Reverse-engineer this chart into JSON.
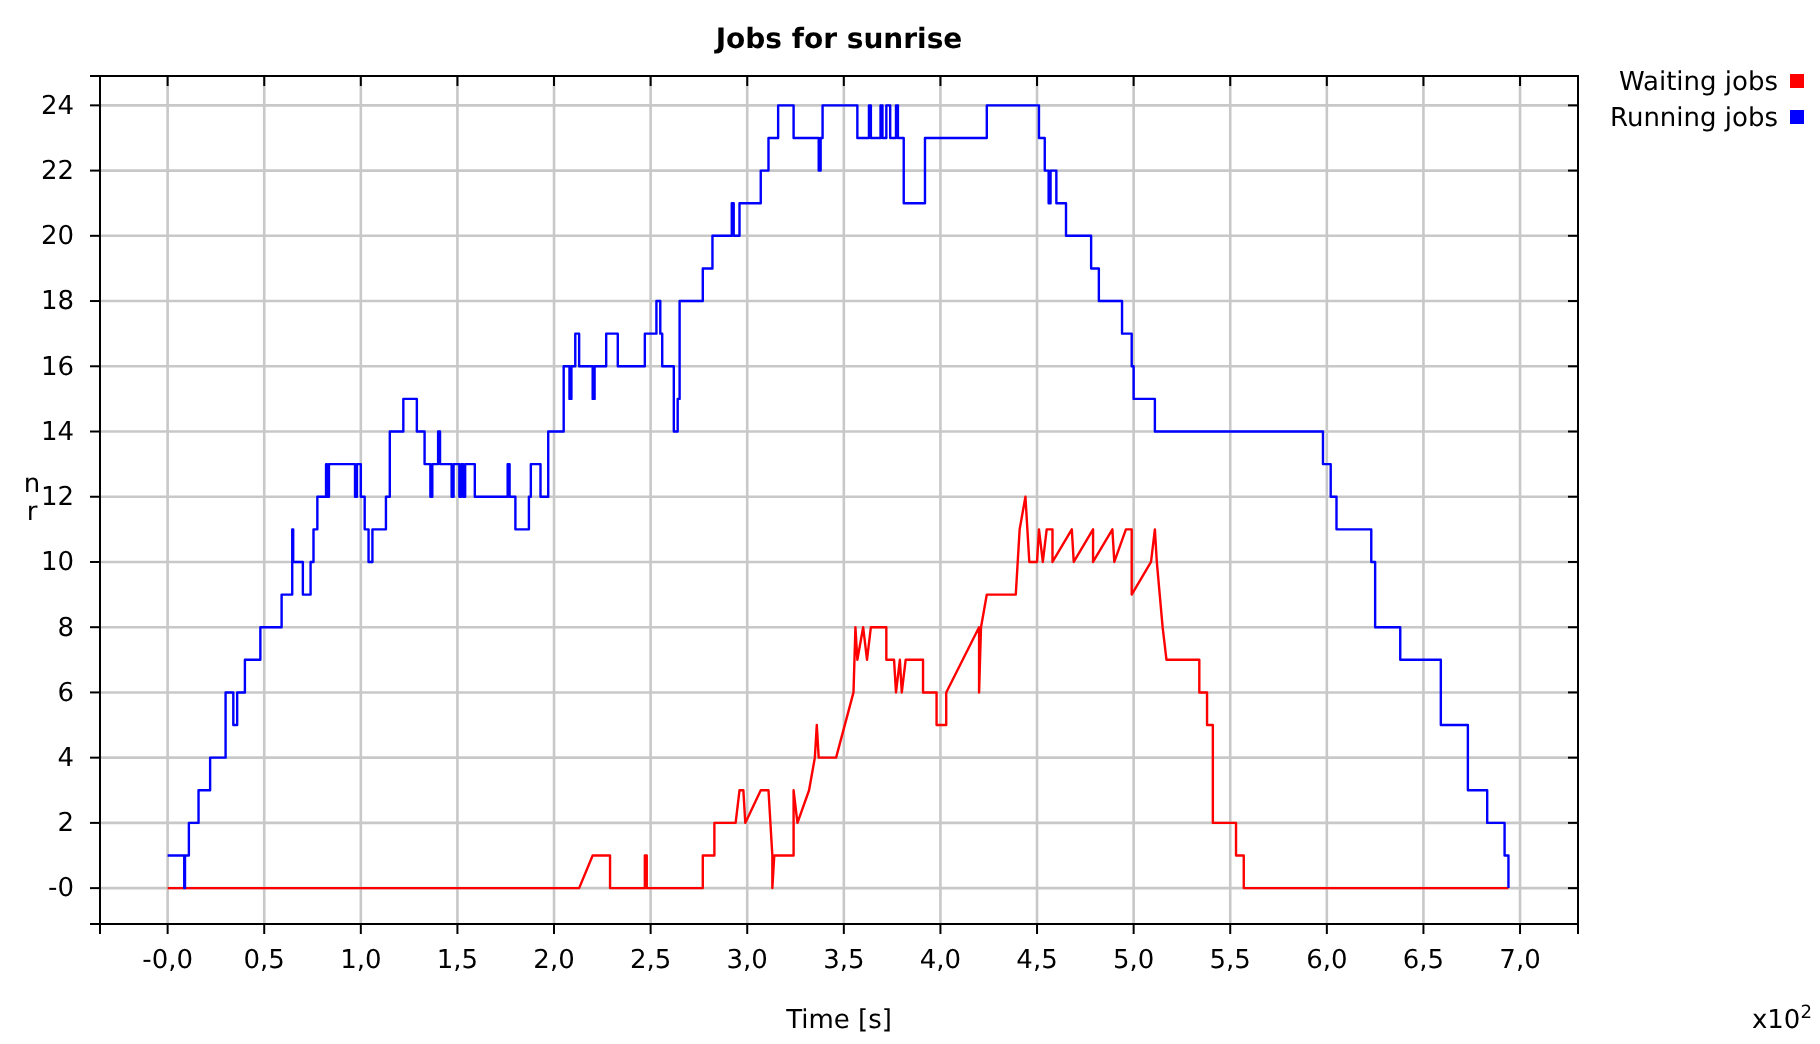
{
  "chart_data": {
    "type": "line",
    "title": "Jobs for sunrise",
    "xlabel": "Time [s]",
    "ylabel": "nr",
    "annotations": [
      "x10$^{2}$"
    ],
    "xlim": [
      -0.35,
      7.3
    ],
    "ylim": [
      -1.1,
      24.9
    ],
    "xticks": [
      {
        "value": 0,
        "label": "-0,0"
      },
      {
        "value": 0.5,
        "label": "0,5"
      },
      {
        "value": 1,
        "label": "1,0"
      },
      {
        "value": 1.5,
        "label": "1,5"
      },
      {
        "value": 2,
        "label": "2,0"
      },
      {
        "value": 2.5,
        "label": "2,5"
      },
      {
        "value": 3,
        "label": "3,0"
      },
      {
        "value": 3.5,
        "label": "3,5"
      },
      {
        "value": 4,
        "label": "4,0"
      },
      {
        "value": 4.5,
        "label": "4,5"
      },
      {
        "value": 5,
        "label": "5,0"
      },
      {
        "value": 5.5,
        "label": "5,5"
      },
      {
        "value": 6,
        "label": "6,0"
      },
      {
        "value": 6.5,
        "label": "6,5"
      },
      {
        "value": 7,
        "label": "7,0"
      }
    ],
    "yticks": [
      {
        "value": 0,
        "label": "-0"
      },
      2,
      4,
      6,
      8,
      10,
      12,
      14,
      16,
      18,
      20,
      22,
      24
    ],
    "grid": true,
    "legend": "top right",
    "marker": "none",
    "line_style": "solid",
    "series": [
      {
        "name": "Waiting jobs",
        "color": "#ff0000",
        "x": [
          0,
          2.13,
          2.2,
          2.29,
          2.29,
          2.47,
          2.47,
          2.48,
          2.48,
          2.77,
          2.77,
          2.83,
          2.83,
          2.94,
          2.96,
          2.98,
          2.99,
          3.07,
          3.11,
          3.13,
          3.13,
          3.14,
          3.24,
          3.24,
          3.26,
          3.32,
          3.35,
          3.36,
          3.37,
          3.46,
          3.55,
          3.56,
          3.57,
          3.6,
          3.62,
          3.64,
          3.72,
          3.72,
          3.76,
          3.77,
          3.79,
          3.8,
          3.82,
          3.91,
          3.91,
          3.98,
          3.98,
          4.03,
          4.03,
          4.2,
          4.2,
          4.21,
          4.24,
          4.39,
          4.41,
          4.44,
          4.46,
          4.5,
          4.51,
          4.53,
          4.55,
          4.58,
          4.58,
          4.68,
          4.69,
          4.79,
          4.79,
          4.89,
          4.9,
          4.96,
          4.99,
          4.99,
          5.09,
          5.11,
          5.12,
          5.15,
          5.17,
          5.34,
          5.34,
          5.38,
          5.38,
          5.41,
          5.41,
          5.53,
          5.53,
          5.57,
          5.57,
          6.94
        ],
        "values": [
          0,
          0,
          1,
          1,
          0,
          0,
          1,
          1,
          0,
          0,
          1,
          1,
          2,
          2,
          3,
          3,
          2,
          3,
          3,
          1,
          0,
          1,
          1,
          3,
          2,
          3,
          4,
          5,
          4,
          4,
          6,
          8,
          7,
          8,
          7,
          8,
          8,
          7,
          7,
          6,
          7,
          6,
          7,
          7,
          6,
          6,
          5,
          5,
          6,
          8,
          6,
          8,
          9,
          9,
          11,
          12,
          10,
          10,
          11,
          10,
          11,
          11,
          10,
          11,
          10,
          11,
          10,
          11,
          10,
          11,
          11,
          9,
          10,
          11,
          10,
          8,
          7,
          7,
          6,
          6,
          5,
          5,
          2,
          2,
          1,
          1,
          0,
          0
        ]
      },
      {
        "name": "Running jobs",
        "color": "#0000ff",
        "type": "step",
        "x": [
          0,
          0.086,
          0.09,
          0.11,
          0.16,
          0.22,
          0.3,
          0.34,
          0.36,
          0.4,
          0.48,
          0.59,
          0.645,
          0.65,
          0.7,
          0.74,
          0.755,
          0.775,
          0.82,
          0.825,
          0.835,
          0.97,
          0.98,
          1.0,
          1.02,
          1.04,
          1.06,
          1.13,
          1.15,
          1.22,
          1.29,
          1.33,
          1.36,
          1.37,
          1.4,
          1.41,
          1.47,
          1.48,
          1.51,
          1.52,
          1.53,
          1.54,
          1.59,
          1.76,
          1.77,
          1.8,
          1.87,
          1.88,
          1.93,
          1.97,
          2.05,
          2.08,
          2.09,
          2.11,
          2.13,
          2.2,
          2.21,
          2.27,
          2.33,
          2.47,
          2.53,
          2.55,
          2.56,
          2.62,
          2.64,
          2.65,
          2.77,
          2.82,
          2.92,
          2.93,
          2.96,
          3.07,
          3.11,
          3.16,
          3.24,
          3.37,
          3.38,
          3.39,
          3.57,
          3.63,
          3.64,
          3.69,
          3.7,
          3.72,
          3.74,
          3.77,
          3.78,
          3.81,
          3.92,
          4.24,
          4.51,
          4.54,
          4.56,
          4.57,
          4.6,
          4.65,
          4.78,
          4.82,
          4.94,
          4.99,
          5.0,
          5.11,
          5.98,
          6.02,
          6.05,
          6.23,
          6.25,
          6.38,
          6.59,
          6.73,
          6.83,
          6.92,
          6.94
        ],
        "values": [
          1,
          0,
          1,
          2,
          3,
          4,
          6,
          5,
          6,
          7,
          8,
          9,
          11,
          10,
          9,
          10,
          11,
          12,
          13,
          12,
          13,
          12,
          13,
          12,
          11,
          10,
          11,
          12,
          14,
          15,
          14,
          13,
          12,
          13,
          14,
          13,
          12,
          13,
          12,
          13,
          12,
          13,
          12,
          13,
          12,
          11,
          12,
          13,
          12,
          14,
          16,
          15,
          16,
          17,
          16,
          15,
          16,
          17,
          16,
          17,
          18,
          17,
          16,
          14,
          15,
          18,
          19,
          20,
          21,
          20,
          21,
          22,
          23,
          24,
          23,
          22,
          23,
          24,
          23,
          24,
          23,
          24,
          23,
          24,
          23,
          24,
          23,
          21,
          23,
          24,
          23,
          22,
          21,
          22,
          21,
          20,
          19,
          18,
          17,
          16,
          15,
          14,
          13,
          12,
          11,
          10,
          8,
          7,
          5,
          3,
          2,
          1,
          0
        ]
      }
    ]
  }
}
